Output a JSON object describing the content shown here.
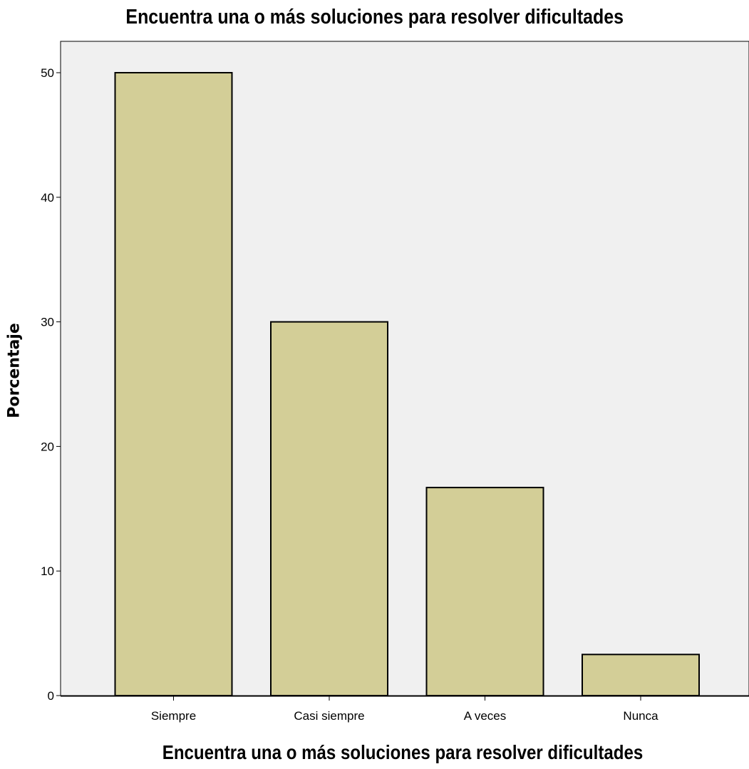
{
  "chart_data": {
    "type": "bar",
    "title": "Encuentra una o más soluciones para resolver dificultades",
    "xlabel": "Encuentra una o más soluciones para resolver dificultades",
    "ylabel": "Porcentaje",
    "categories": [
      "Siempre",
      "Casi siempre",
      "A veces",
      "Nunca"
    ],
    "values": [
      50.0,
      30.0,
      16.7,
      3.3
    ],
    "ylim": [
      0,
      52.5
    ],
    "yticks": [
      0,
      10,
      20,
      30,
      40,
      50
    ],
    "grid": false,
    "legend": "none",
    "colors": {
      "bar_fill": "#d3ce97",
      "bar_stroke": "#000000",
      "plot_bg": "#f0f0f0"
    }
  }
}
